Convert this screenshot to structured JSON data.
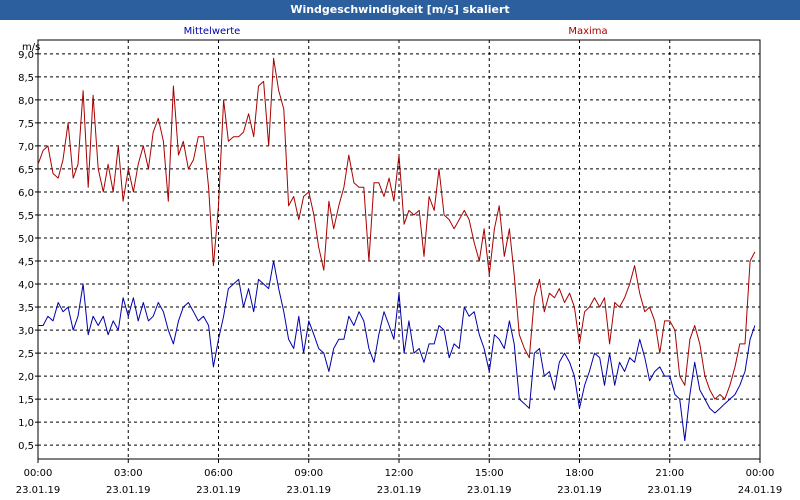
{
  "window": {
    "title": "Windgeschwindigkeit [m/s] skaliert"
  },
  "chart_data": {
    "type": "line",
    "title": "Windgeschwindigkeit [m/s] skaliert",
    "ylabel": "m/s",
    "xlabel": "",
    "ylim": [
      0.2,
      9.3
    ],
    "xlim": [
      0,
      24
    ],
    "grid": true,
    "legend_placement": "top",
    "y_ticks": [
      "0,5",
      "1,0",
      "1,5",
      "2,0",
      "2,5",
      "3,0",
      "3,5",
      "4,0",
      "4,5",
      "5,0",
      "5,5",
      "6,0",
      "6,5",
      "7,0",
      "7,5",
      "8,0",
      "8,5",
      "9,0"
    ],
    "x_ticks": [
      {
        "time": "00:00",
        "date": "23.01.19"
      },
      {
        "time": "03:00",
        "date": "23.01.19"
      },
      {
        "time": "06:00",
        "date": "23.01.19"
      },
      {
        "time": "09:00",
        "date": "23.01.19"
      },
      {
        "time": "12:00",
        "date": "23.01.19"
      },
      {
        "time": "15:00",
        "date": "23.01.19"
      },
      {
        "time": "18:00",
        "date": "23.01.19"
      },
      {
        "time": "21:00",
        "date": "23.01.19"
      },
      {
        "time": "00:00",
        "date": "24.01.19"
      }
    ],
    "series": [
      {
        "name": "Mittelwerte",
        "color": "#0000aa",
        "points": [
          [
            0.0,
            3.1
          ],
          [
            0.17,
            3.1
          ],
          [
            0.33,
            3.3
          ],
          [
            0.5,
            3.2
          ],
          [
            0.67,
            3.6
          ],
          [
            0.83,
            3.4
          ],
          [
            1.0,
            3.5
          ],
          [
            1.17,
            3.0
          ],
          [
            1.33,
            3.3
          ],
          [
            1.5,
            4.0
          ],
          [
            1.67,
            2.9
          ],
          [
            1.83,
            3.3
          ],
          [
            2.0,
            3.1
          ],
          [
            2.17,
            3.3
          ],
          [
            2.33,
            2.9
          ],
          [
            2.5,
            3.2
          ],
          [
            2.67,
            3.0
          ],
          [
            2.83,
            3.7
          ],
          [
            3.0,
            3.3
          ],
          [
            3.17,
            3.7
          ],
          [
            3.33,
            3.2
          ],
          [
            3.5,
            3.6
          ],
          [
            3.67,
            3.2
          ],
          [
            3.83,
            3.3
          ],
          [
            4.0,
            3.6
          ],
          [
            4.17,
            3.4
          ],
          [
            4.33,
            3.0
          ],
          [
            4.5,
            2.7
          ],
          [
            4.67,
            3.2
          ],
          [
            4.83,
            3.5
          ],
          [
            5.0,
            3.6
          ],
          [
            5.17,
            3.4
          ],
          [
            5.33,
            3.2
          ],
          [
            5.5,
            3.3
          ],
          [
            5.67,
            3.1
          ],
          [
            5.83,
            2.2
          ],
          [
            6.0,
            2.8
          ],
          [
            6.17,
            3.3
          ],
          [
            6.33,
            3.9
          ],
          [
            6.5,
            4.0
          ],
          [
            6.67,
            4.1
          ],
          [
            6.83,
            3.5
          ],
          [
            7.0,
            3.9
          ],
          [
            7.17,
            3.4
          ],
          [
            7.33,
            4.1
          ],
          [
            7.5,
            4.0
          ],
          [
            7.67,
            3.9
          ],
          [
            7.83,
            4.5
          ],
          [
            8.0,
            3.9
          ],
          [
            8.17,
            3.4
          ],
          [
            8.33,
            2.8
          ],
          [
            8.5,
            2.6
          ],
          [
            8.67,
            3.3
          ],
          [
            8.83,
            2.5
          ],
          [
            9.0,
            3.2
          ],
          [
            9.17,
            2.9
          ],
          [
            9.33,
            2.6
          ],
          [
            9.5,
            2.5
          ],
          [
            9.67,
            2.1
          ],
          [
            9.83,
            2.6
          ],
          [
            10.0,
            2.8
          ],
          [
            10.17,
            2.8
          ],
          [
            10.33,
            3.3
          ],
          [
            10.5,
            3.1
          ],
          [
            10.67,
            3.4
          ],
          [
            10.83,
            3.2
          ],
          [
            11.0,
            2.6
          ],
          [
            11.17,
            2.3
          ],
          [
            11.33,
            2.9
          ],
          [
            11.5,
            3.4
          ],
          [
            11.67,
            3.1
          ],
          [
            11.83,
            2.8
          ],
          [
            12.0,
            3.8
          ],
          [
            12.17,
            2.5
          ],
          [
            12.33,
            3.2
          ],
          [
            12.5,
            2.5
          ],
          [
            12.67,
            2.6
          ],
          [
            12.83,
            2.3
          ],
          [
            13.0,
            2.7
          ],
          [
            13.17,
            2.7
          ],
          [
            13.33,
            3.1
          ],
          [
            13.5,
            3.0
          ],
          [
            13.67,
            2.4
          ],
          [
            13.83,
            2.7
          ],
          [
            14.0,
            2.6
          ],
          [
            14.17,
            3.5
          ],
          [
            14.33,
            3.3
          ],
          [
            14.5,
            3.4
          ],
          [
            14.67,
            2.9
          ],
          [
            14.83,
            2.6
          ],
          [
            15.0,
            2.1
          ],
          [
            15.17,
            2.9
          ],
          [
            15.33,
            2.8
          ],
          [
            15.5,
            2.6
          ],
          [
            15.67,
            3.2
          ],
          [
            15.83,
            2.7
          ],
          [
            16.0,
            1.5
          ],
          [
            16.17,
            1.4
          ],
          [
            16.33,
            1.3
          ],
          [
            16.5,
            2.5
          ],
          [
            16.67,
            2.6
          ],
          [
            16.83,
            2.0
          ],
          [
            17.0,
            2.1
          ],
          [
            17.17,
            1.7
          ],
          [
            17.33,
            2.3
          ],
          [
            17.5,
            2.5
          ],
          [
            17.67,
            2.3
          ],
          [
            17.83,
            2.0
          ],
          [
            18.0,
            1.3
          ],
          [
            18.17,
            1.8
          ],
          [
            18.33,
            2.1
          ],
          [
            18.5,
            2.5
          ],
          [
            18.67,
            2.4
          ],
          [
            18.83,
            1.8
          ],
          [
            19.0,
            2.5
          ],
          [
            19.17,
            1.8
          ],
          [
            19.33,
            2.3
          ],
          [
            19.5,
            2.1
          ],
          [
            19.67,
            2.4
          ],
          [
            19.83,
            2.3
          ],
          [
            20.0,
            2.8
          ],
          [
            20.17,
            2.4
          ],
          [
            20.33,
            1.9
          ],
          [
            20.5,
            2.1
          ],
          [
            20.67,
            2.2
          ],
          [
            20.83,
            2.0
          ],
          [
            21.0,
            2.0
          ],
          [
            21.17,
            1.6
          ],
          [
            21.33,
            1.5
          ],
          [
            21.5,
            0.6
          ],
          [
            21.67,
            1.6
          ],
          [
            21.83,
            2.3
          ],
          [
            22.0,
            1.7
          ],
          [
            22.17,
            1.5
          ],
          [
            22.33,
            1.3
          ],
          [
            22.5,
            1.2
          ],
          [
            22.67,
            1.3
          ],
          [
            22.83,
            1.4
          ],
          [
            23.0,
            1.5
          ],
          [
            23.17,
            1.6
          ],
          [
            23.33,
            1.8
          ],
          [
            23.5,
            2.1
          ],
          [
            23.67,
            2.8
          ],
          [
            23.83,
            3.1
          ]
        ]
      },
      {
        "name": "Maxima",
        "color": "#aa0000",
        "points": [
          [
            0.0,
            6.6
          ],
          [
            0.17,
            6.9
          ],
          [
            0.33,
            7.0
          ],
          [
            0.5,
            6.4
          ],
          [
            0.67,
            6.3
          ],
          [
            0.83,
            6.7
          ],
          [
            1.0,
            7.5
          ],
          [
            1.17,
            6.3
          ],
          [
            1.33,
            6.6
          ],
          [
            1.5,
            8.2
          ],
          [
            1.67,
            6.1
          ],
          [
            1.83,
            8.1
          ],
          [
            2.0,
            6.5
          ],
          [
            2.17,
            6.0
          ],
          [
            2.33,
            6.6
          ],
          [
            2.5,
            6.0
          ],
          [
            2.67,
            7.0
          ],
          [
            2.83,
            5.8
          ],
          [
            3.0,
            6.5
          ],
          [
            3.17,
            6.0
          ],
          [
            3.33,
            6.6
          ],
          [
            3.5,
            7.0
          ],
          [
            3.67,
            6.5
          ],
          [
            3.83,
            7.3
          ],
          [
            4.0,
            7.6
          ],
          [
            4.17,
            7.1
          ],
          [
            4.33,
            5.8
          ],
          [
            4.5,
            8.3
          ],
          [
            4.67,
            6.8
          ],
          [
            4.83,
            7.1
          ],
          [
            5.0,
            6.5
          ],
          [
            5.17,
            6.7
          ],
          [
            5.33,
            7.2
          ],
          [
            5.5,
            7.2
          ],
          [
            5.67,
            6.1
          ],
          [
            5.83,
            4.4
          ],
          [
            6.0,
            5.7
          ],
          [
            6.17,
            8.0
          ],
          [
            6.33,
            7.1
          ],
          [
            6.5,
            7.2
          ],
          [
            6.67,
            7.2
          ],
          [
            6.83,
            7.3
          ],
          [
            7.0,
            7.7
          ],
          [
            7.17,
            7.2
          ],
          [
            7.33,
            8.3
          ],
          [
            7.5,
            8.4
          ],
          [
            7.67,
            7.0
          ],
          [
            7.83,
            8.9
          ],
          [
            8.0,
            8.2
          ],
          [
            8.17,
            7.8
          ],
          [
            8.33,
            5.7
          ],
          [
            8.5,
            5.9
          ],
          [
            8.67,
            5.4
          ],
          [
            8.83,
            5.9
          ],
          [
            9.0,
            6.0
          ],
          [
            9.17,
            5.5
          ],
          [
            9.33,
            4.8
          ],
          [
            9.5,
            4.3
          ],
          [
            9.67,
            5.8
          ],
          [
            9.83,
            5.2
          ],
          [
            10.0,
            5.7
          ],
          [
            10.17,
            6.1
          ],
          [
            10.33,
            6.8
          ],
          [
            10.5,
            6.2
          ],
          [
            10.67,
            6.1
          ],
          [
            10.83,
            6.1
          ],
          [
            11.0,
            4.5
          ],
          [
            11.17,
            6.2
          ],
          [
            11.33,
            6.2
          ],
          [
            11.5,
            5.9
          ],
          [
            11.67,
            6.3
          ],
          [
            11.83,
            5.8
          ],
          [
            12.0,
            6.8
          ],
          [
            12.17,
            5.3
          ],
          [
            12.33,
            5.6
          ],
          [
            12.5,
            5.5
          ],
          [
            12.67,
            5.6
          ],
          [
            12.83,
            4.6
          ],
          [
            13.0,
            5.9
          ],
          [
            13.17,
            5.6
          ],
          [
            13.33,
            6.5
          ],
          [
            13.5,
            5.5
          ],
          [
            13.67,
            5.4
          ],
          [
            13.83,
            5.2
          ],
          [
            14.0,
            5.4
          ],
          [
            14.17,
            5.6
          ],
          [
            14.33,
            5.4
          ],
          [
            14.5,
            4.9
          ],
          [
            14.67,
            4.5
          ],
          [
            14.83,
            5.2
          ],
          [
            15.0,
            4.2
          ],
          [
            15.17,
            5.2
          ],
          [
            15.33,
            5.7
          ],
          [
            15.5,
            4.6
          ],
          [
            15.67,
            5.2
          ],
          [
            15.83,
            4.2
          ],
          [
            16.0,
            2.9
          ],
          [
            16.17,
            2.6
          ],
          [
            16.33,
            2.4
          ],
          [
            16.5,
            3.7
          ],
          [
            16.67,
            4.1
          ],
          [
            16.83,
            3.4
          ],
          [
            17.0,
            3.8
          ],
          [
            17.17,
            3.7
          ],
          [
            17.33,
            3.9
          ],
          [
            17.5,
            3.6
          ],
          [
            17.67,
            3.8
          ],
          [
            17.83,
            3.5
          ],
          [
            18.0,
            2.7
          ],
          [
            18.17,
            3.4
          ],
          [
            18.33,
            3.5
          ],
          [
            18.5,
            3.7
          ],
          [
            18.67,
            3.5
          ],
          [
            18.83,
            3.7
          ],
          [
            19.0,
            2.7
          ],
          [
            19.17,
            3.6
          ],
          [
            19.33,
            3.5
          ],
          [
            19.5,
            3.7
          ],
          [
            19.67,
            4.0
          ],
          [
            19.83,
            4.4
          ],
          [
            20.0,
            3.8
          ],
          [
            20.17,
            3.4
          ],
          [
            20.33,
            3.5
          ],
          [
            20.5,
            3.2
          ],
          [
            20.67,
            2.5
          ],
          [
            20.83,
            3.2
          ],
          [
            21.0,
            3.2
          ],
          [
            21.17,
            3.0
          ],
          [
            21.33,
            2.0
          ],
          [
            21.5,
            1.8
          ],
          [
            21.67,
            2.8
          ],
          [
            21.83,
            3.1
          ],
          [
            22.0,
            2.7
          ],
          [
            22.17,
            2.0
          ],
          [
            22.33,
            1.7
          ],
          [
            22.5,
            1.5
          ],
          [
            22.67,
            1.6
          ],
          [
            22.83,
            1.5
          ],
          [
            23.0,
            1.8
          ],
          [
            23.17,
            2.2
          ],
          [
            23.33,
            2.7
          ],
          [
            23.5,
            2.7
          ],
          [
            23.67,
            4.5
          ],
          [
            23.83,
            4.7
          ]
        ]
      }
    ]
  }
}
